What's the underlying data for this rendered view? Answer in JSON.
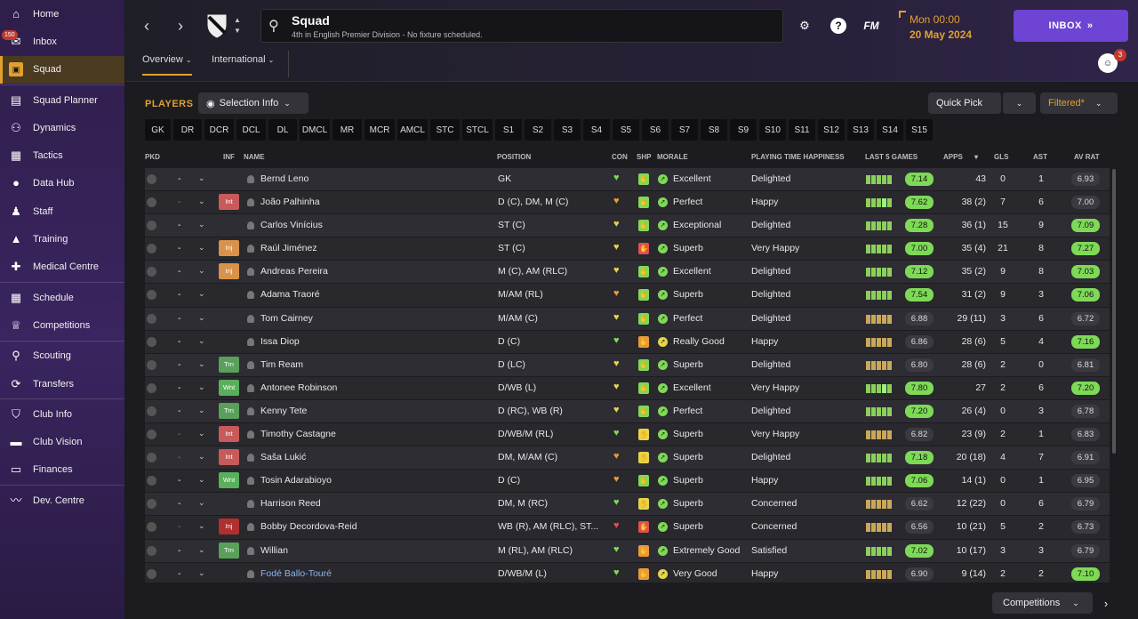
{
  "sidebar": {
    "inbox_badge": "150",
    "items": [
      {
        "label": "Home",
        "icon": "home-icon"
      },
      {
        "label": "Inbox",
        "icon": "mail-icon"
      },
      {
        "label": "Squad",
        "icon": "shirt-icon"
      },
      {
        "label": "Squad Planner",
        "icon": "clipboard-icon"
      },
      {
        "label": "Dynamics",
        "icon": "dynamics-icon"
      },
      {
        "label": "Tactics",
        "icon": "tactics-icon"
      },
      {
        "label": "Data Hub",
        "icon": "data-hub-icon"
      },
      {
        "label": "Staff",
        "icon": "staff-icon"
      },
      {
        "label": "Training",
        "icon": "training-icon"
      },
      {
        "label": "Medical Centre",
        "icon": "medical-icon"
      },
      {
        "label": "Schedule",
        "icon": "calendar-icon"
      },
      {
        "label": "Competitions",
        "icon": "trophy-icon"
      },
      {
        "label": "Scouting",
        "icon": "scouting-icon"
      },
      {
        "label": "Transfers",
        "icon": "transfers-icon"
      },
      {
        "label": "Club Info",
        "icon": "shield-icon"
      },
      {
        "label": "Club Vision",
        "icon": "briefcase-icon"
      },
      {
        "label": "Finances",
        "icon": "money-icon"
      },
      {
        "label": "Dev. Centre",
        "icon": "dev-centre-icon"
      }
    ]
  },
  "topbar": {
    "title": "Squad",
    "subtitle": "4th in English Premier Division - No fixture scheduled.",
    "fm_label": "FM",
    "help_label": "?",
    "date_time": "Mon 00:00",
    "date": "20 May 2024",
    "inbox_button": "INBOX",
    "people_badge": "3",
    "tabs": [
      {
        "label": "Overview"
      },
      {
        "label": "International"
      }
    ]
  },
  "players_panel": {
    "title": "PLAYERS",
    "selection_info": "Selection Info",
    "quick_pick": "Quick Pick",
    "filtered": "Filtered*",
    "positions": [
      "GK",
      "DR",
      "DCR",
      "DCL",
      "DL",
      "DMCL",
      "MR",
      "MCR",
      "AMCL",
      "STC",
      "STCL",
      "S1",
      "S2",
      "S3",
      "S4",
      "S5",
      "S6",
      "S7",
      "S8",
      "S9",
      "S10",
      "S11",
      "S12",
      "S13",
      "S14",
      "S15"
    ],
    "columns": {
      "pkd": "PKD",
      "inf": "INF",
      "name": "NAME",
      "position": "POSITION",
      "con": "CON",
      "shp": "SHP",
      "morale": "MORALE",
      "pth": "PLAYING TIME HAPPINESS",
      "last5": "LAST 5 GAMES",
      "apps": "APPS",
      "gls": "GLS",
      "ast": "AST",
      "avrat": "AV RAT"
    },
    "rows": [
      {
        "dash": "-",
        "inf": "",
        "name": "Bernd Leno",
        "position": "GK",
        "con": "green",
        "shp": "green",
        "morale_ico": "green",
        "morale": "Excellent",
        "pth": "Delighted",
        "form": [
          3,
          3,
          3,
          3,
          3
        ],
        "last": "7.14",
        "last_hi": true,
        "apps": "43",
        "gls": "0",
        "ast": "1",
        "avrat": "6.93",
        "av_hi": false
      },
      {
        "dash": "-",
        "inf": "Int",
        "name": "João Palhinha",
        "position": "D (C), DM, M (C)",
        "con": "orange",
        "shp": "green",
        "morale_ico": "green",
        "morale": "Perfect",
        "pth": "Happy",
        "form": [
          3,
          3,
          3,
          4,
          3
        ],
        "last": "7.62",
        "last_hi": true,
        "apps": "38 (2)",
        "gls": "7",
        "ast": "6",
        "avrat": "7.00",
        "av_hi": false
      },
      {
        "dash": "-",
        "inf": "",
        "name": "Carlos Vinícius",
        "position": "ST (C)",
        "con": "yellow",
        "shp": "green",
        "morale_ico": "green",
        "morale": "Exceptional",
        "pth": "Delighted",
        "form": [
          3,
          3,
          3,
          3,
          3
        ],
        "last": "7.28",
        "last_hi": true,
        "apps": "36 (1)",
        "gls": "15",
        "ast": "9",
        "avrat": "7.09",
        "av_hi": true
      },
      {
        "dash": "-",
        "inf": "Inj",
        "name": "Raúl Jiménez",
        "position": "ST (C)",
        "con": "yellow",
        "shp": "red",
        "morale_ico": "green",
        "morale": "Superb",
        "pth": "Very Happy",
        "form": [
          3,
          3,
          3,
          3,
          3
        ],
        "last": "7.00",
        "last_hi": true,
        "apps": "35 (4)",
        "gls": "21",
        "ast": "8",
        "avrat": "7.27",
        "av_hi": true
      },
      {
        "dash": "-",
        "inf": "Inj",
        "name": "Andreas Pereira",
        "position": "M (C), AM (RLC)",
        "con": "yellow",
        "shp": "green",
        "morale_ico": "green",
        "morale": "Excellent",
        "pth": "Delighted",
        "form": [
          3,
          3,
          3,
          3,
          3
        ],
        "last": "7.12",
        "last_hi": true,
        "apps": "35 (2)",
        "gls": "9",
        "ast": "8",
        "avrat": "7.03",
        "av_hi": true
      },
      {
        "dash": "-",
        "inf": "",
        "name": "Adama Traoré",
        "position": "M/AM (RL)",
        "con": "orange",
        "shp": "green",
        "morale_ico": "green",
        "morale": "Superb",
        "pth": "Delighted",
        "form": [
          3,
          3,
          3,
          3,
          3
        ],
        "last": "7.54",
        "last_hi": true,
        "apps": "31 (2)",
        "gls": "9",
        "ast": "3",
        "avrat": "7.06",
        "av_hi": true
      },
      {
        "dash": "-",
        "inf": "",
        "name": "Tom Cairney",
        "position": "M/AM (C)",
        "con": "yellow",
        "shp": "green",
        "morale_ico": "green",
        "morale": "Perfect",
        "pth": "Delighted",
        "form": [
          2,
          2,
          2,
          2,
          2
        ],
        "last": "6.88",
        "last_hi": false,
        "apps": "29 (11)",
        "gls": "3",
        "ast": "6",
        "avrat": "6.72",
        "av_hi": false
      },
      {
        "dash": "-",
        "inf": "",
        "name": "Issa Diop",
        "position": "D (C)",
        "con": "green",
        "shp": "orange",
        "morale_ico": "yellow",
        "morale": "Really Good",
        "pth": "Happy",
        "form": [
          2,
          2,
          2,
          2,
          2
        ],
        "last": "6.86",
        "last_hi": false,
        "apps": "28 (6)",
        "gls": "5",
        "ast": "4",
        "avrat": "7.16",
        "av_hi": true
      },
      {
        "dash": "-",
        "inf": "Trn",
        "name": "Tim Ream",
        "position": "D (LC)",
        "con": "yellow",
        "shp": "green",
        "morale_ico": "green",
        "morale": "Superb",
        "pth": "Delighted",
        "form": [
          2,
          2,
          2,
          2,
          2
        ],
        "last": "6.80",
        "last_hi": false,
        "apps": "28 (6)",
        "gls": "2",
        "ast": "0",
        "avrat": "6.81",
        "av_hi": false
      },
      {
        "dash": "-",
        "inf": "Wnt",
        "name": "Antonee Robinson",
        "position": "D/WB (L)",
        "con": "yellow",
        "shp": "green",
        "morale_ico": "green",
        "morale": "Excellent",
        "pth": "Very Happy",
        "form": [
          3,
          3,
          3,
          4,
          3
        ],
        "last": "7.80",
        "last_hi": true,
        "apps": "27",
        "gls": "2",
        "ast": "6",
        "avrat": "7.20",
        "av_hi": true
      },
      {
        "dash": "-",
        "inf": "Trn",
        "name": "Kenny Tete",
        "position": "D (RC), WB (R)",
        "con": "yellow",
        "shp": "green",
        "morale_ico": "green",
        "morale": "Perfect",
        "pth": "Delighted",
        "form": [
          3,
          3,
          3,
          3,
          3
        ],
        "last": "7.20",
        "last_hi": true,
        "apps": "26 (4)",
        "gls": "0",
        "ast": "3",
        "avrat": "6.78",
        "av_hi": false
      },
      {
        "dash": "-",
        "inf": "Int",
        "name": "Timothy Castagne",
        "position": "D/WB/M (RL)",
        "con": "green",
        "shp": "yellow",
        "morale_ico": "green",
        "morale": "Superb",
        "pth": "Very Happy",
        "form": [
          2,
          2,
          2,
          2,
          2
        ],
        "last": "6.82",
        "last_hi": false,
        "apps": "23 (9)",
        "gls": "2",
        "ast": "1",
        "avrat": "6.83",
        "av_hi": false
      },
      {
        "dash": "-",
        "inf": "Int",
        "name": "Saša Lukić",
        "position": "DM, M/AM (C)",
        "con": "orange",
        "shp": "yellow",
        "morale_ico": "green",
        "morale": "Superb",
        "pth": "Delighted",
        "form": [
          3,
          3,
          3,
          3,
          3
        ],
        "last": "7.18",
        "last_hi": true,
        "apps": "20 (18)",
        "gls": "4",
        "ast": "7",
        "avrat": "6.91",
        "av_hi": false
      },
      {
        "dash": "-",
        "inf": "Wnt",
        "name": "Tosin Adarabioyo",
        "position": "D (C)",
        "con": "orange",
        "shp": "green",
        "morale_ico": "green",
        "morale": "Superb",
        "pth": "Happy",
        "form": [
          3,
          3,
          3,
          3,
          3
        ],
        "last": "7.06",
        "last_hi": true,
        "apps": "14 (1)",
        "gls": "0",
        "ast": "1",
        "avrat": "6.95",
        "av_hi": false
      },
      {
        "dash": "-",
        "inf": "",
        "name": "Harrison Reed",
        "position": "DM, M (RC)",
        "con": "green",
        "shp": "yellow",
        "morale_ico": "green",
        "morale": "Superb",
        "pth": "Concerned",
        "form": [
          2,
          2,
          2,
          2,
          2
        ],
        "last": "6.62",
        "last_hi": false,
        "apps": "12 (22)",
        "gls": "0",
        "ast": "6",
        "avrat": "6.79",
        "av_hi": false
      },
      {
        "dash": "-",
        "inf": "Inj-red",
        "inf_text": "Inj",
        "name": "Bobby Decordova-Reid",
        "position": "WB (R), AM (RLC), ST...",
        "con": "red",
        "shp": "red",
        "morale_ico": "green",
        "morale": "Superb",
        "pth": "Concerned",
        "form": [
          2,
          2,
          2,
          2,
          2
        ],
        "last": "6.56",
        "last_hi": false,
        "apps": "10 (21)",
        "gls": "5",
        "ast": "2",
        "avrat": "6.73",
        "av_hi": false
      },
      {
        "dash": "-",
        "inf": "Trn",
        "name": "Willian",
        "position": "M (RL), AM (RLC)",
        "con": "green",
        "shp": "orange",
        "morale_ico": "green",
        "morale": "Extremely Good",
        "pth": "Satisfied",
        "form": [
          3,
          3,
          3,
          3,
          3
        ],
        "last": "7.02",
        "last_hi": true,
        "apps": "10 (17)",
        "gls": "3",
        "ast": "3",
        "avrat": "6.79",
        "av_hi": false
      },
      {
        "dash": "-",
        "inf": "",
        "name": "Fodé Ballo-Touré",
        "position": "D/WB/M (L)",
        "con": "green",
        "shp": "orange",
        "morale_ico": "yellow",
        "morale": "Very Good",
        "pth": "Happy",
        "form": [
          2,
          2,
          2,
          2,
          2
        ],
        "last": "6.90",
        "last_hi": false,
        "apps": "9 (14)",
        "gls": "2",
        "ast": "2",
        "avrat": "7.10",
        "av_hi": true,
        "link": true
      }
    ],
    "competitions_button": "Competitions"
  },
  "colors": {
    "accent": "#e0a030",
    "inbox": "#6d44d4",
    "green": "#7ed957",
    "rating_grey": "#3a3a40"
  }
}
